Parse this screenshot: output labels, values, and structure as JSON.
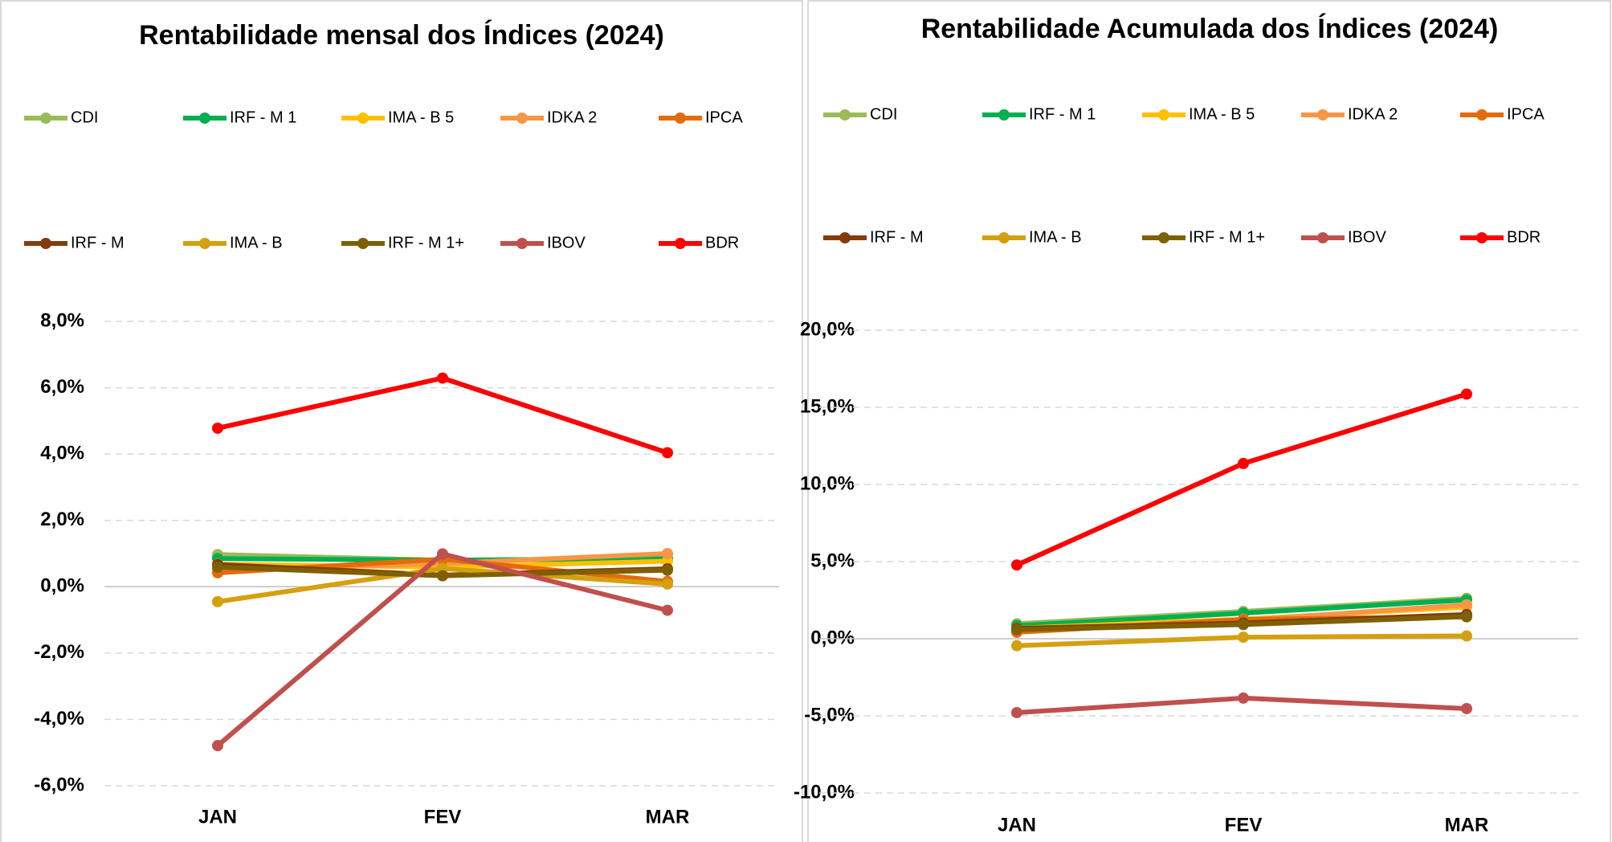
{
  "chart_data": [
    {
      "type": "line",
      "title": "Rentabilidade mensal dos Índices (2024)",
      "categories": [
        "JAN",
        "FEV",
        "MAR"
      ],
      "ylim": [
        -6,
        8
      ],
      "yticks": [
        {
          "value": -6,
          "label": "-6,0%"
        },
        {
          "value": -4,
          "label": "-4,0%"
        },
        {
          "value": -2,
          "label": "-2,0%"
        },
        {
          "value": 0,
          "label": "0,0%"
        },
        {
          "value": 2,
          "label": "2,0%"
        },
        {
          "value": 4,
          "label": "4,0%"
        },
        {
          "value": 6,
          "label": "6,0%"
        },
        {
          "value": 8,
          "label": "8,0%"
        }
      ],
      "grid": true,
      "series": [
        {
          "name": "CDI",
          "color": "#9bbb59",
          "values": [
            0.97,
            0.8,
            0.83
          ]
        },
        {
          "name": "IRF - M 1",
          "color": "#00b050",
          "values": [
            0.85,
            0.8,
            0.85
          ]
        },
        {
          "name": "IMA - B 5",
          "color": "#ffc000",
          "values": [
            0.68,
            0.59,
            0.77
          ]
        },
        {
          "name": "IDKA 2",
          "color": "#f79646",
          "values": [
            0.5,
            0.7,
            1.0
          ]
        },
        {
          "name": "IPCA",
          "color": "#e36c09",
          "values": [
            0.42,
            0.83,
            0.16
          ]
        },
        {
          "name": "IRF - M",
          "color": "#843c0c",
          "values": [
            0.67,
            0.35,
            0.54
          ]
        },
        {
          "name": "IMA - B",
          "color": "#d4a00f",
          "values": [
            -0.45,
            0.55,
            0.08
          ]
        },
        {
          "name": "IRF - M 1+",
          "color": "#7f6000",
          "values": [
            0.59,
            0.33,
            0.5
          ]
        },
        {
          "name": "IBOV",
          "color": "#c0504d",
          "values": [
            -4.79,
            0.99,
            -0.71
          ]
        },
        {
          "name": "BDR",
          "color": "#ff0000",
          "values": [
            4.78,
            6.29,
            4.04
          ]
        }
      ]
    },
    {
      "type": "line",
      "title": "Rentabilidade Acumulada dos Índices (2024)",
      "categories": [
        "JAN",
        "FEV",
        "MAR"
      ],
      "ylim": [
        -10,
        20
      ],
      "yticks": [
        {
          "value": -10,
          "label": "-10,0%"
        },
        {
          "value": -5,
          "label": "-5,0%"
        },
        {
          "value": 0,
          "label": "0,0%"
        },
        {
          "value": 5,
          "label": "5,0%"
        },
        {
          "value": 10,
          "label": "10,0%"
        },
        {
          "value": 15,
          "label": "15,0%"
        },
        {
          "value": 20,
          "label": "20,0%"
        }
      ],
      "grid": true,
      "series": [
        {
          "name": "CDI",
          "color": "#9bbb59",
          "values": [
            0.97,
            1.77,
            2.62
          ]
        },
        {
          "name": "IRF - M 1",
          "color": "#00b050",
          "values": [
            0.85,
            1.66,
            2.52
          ]
        },
        {
          "name": "IMA - B 5",
          "color": "#ffc000",
          "values": [
            0.68,
            1.27,
            2.05
          ]
        },
        {
          "name": "IDKA 2",
          "color": "#f79646",
          "values": [
            0.5,
            1.2,
            2.2
          ]
        },
        {
          "name": "IPCA",
          "color": "#e36c09",
          "values": [
            0.42,
            1.25,
            1.42
          ]
        },
        {
          "name": "IRF - M",
          "color": "#843c0c",
          "values": [
            0.67,
            1.02,
            1.57
          ]
        },
        {
          "name": "IMA - B",
          "color": "#d4a00f",
          "values": [
            -0.45,
            0.1,
            0.18
          ]
        },
        {
          "name": "IRF - M 1+",
          "color": "#7f6000",
          "values": [
            0.59,
            0.92,
            1.43
          ]
        },
        {
          "name": "IBOV",
          "color": "#c0504d",
          "values": [
            -4.79,
            -3.85,
            -4.53
          ]
        },
        {
          "name": "BDR",
          "color": "#ff0000",
          "values": [
            4.78,
            11.36,
            15.86
          ]
        }
      ]
    }
  ]
}
